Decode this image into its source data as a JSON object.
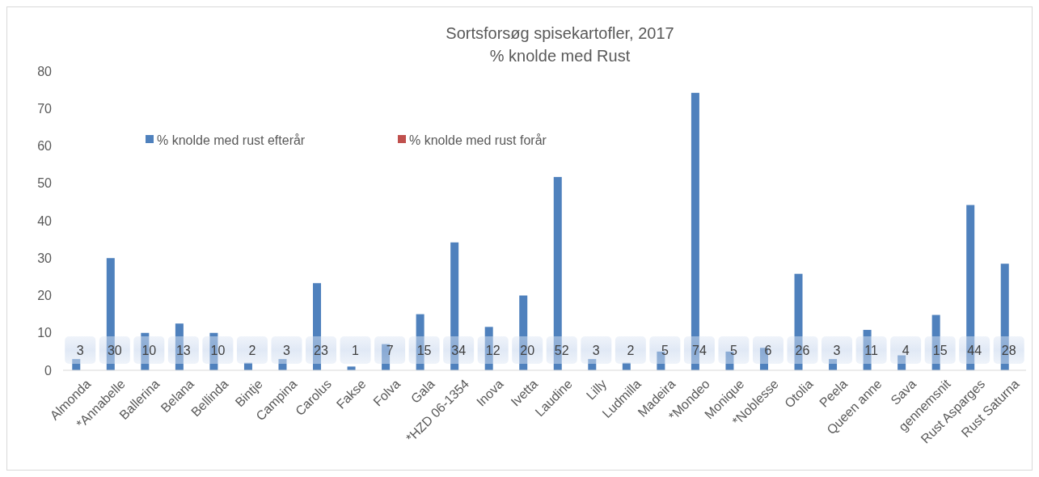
{
  "chart_data": {
    "type": "bar",
    "title": "Sortsforsøg spisekartofler, 2017",
    "subtitle": "% knolde med Rust",
    "categories": [
      "Almonda",
      "*Annabelle",
      "Ballerina",
      "Belana",
      "Bellinda",
      "Bintje",
      "Campina",
      "Carolus",
      "Fakse",
      "Folva",
      "Gala",
      "*HZD 06-1354",
      "Inova",
      "Ivetta",
      "Laudine",
      "Lilly",
      "Ludmilla",
      "Madeira",
      "*Mondeo",
      "Monique",
      "*Noblesse",
      "Otolia",
      "Peela",
      "Queen anne",
      "Sava",
      "gennemsnit",
      "Rust Asparges",
      "Rust Saturna"
    ],
    "series": [
      {
        "name": "% knolde  med rust efterår",
        "color": "#4f81bd",
        "values": [
          3,
          30,
          10,
          12.5,
          10,
          2,
          3,
          23.3,
          1,
          7,
          15,
          34.2,
          11.6,
          20,
          51.7,
          3,
          2,
          5,
          74.2,
          5,
          6,
          25.8,
          3,
          10.8,
          4,
          14.8,
          44.2,
          28.5
        ],
        "value_labels": [
          "3",
          "30",
          "10",
          "13",
          "10",
          "2",
          "3",
          "23",
          "1",
          "7",
          "15",
          "34",
          "12",
          "20",
          "52",
          "3",
          "2",
          "5",
          "74",
          "5",
          "6",
          "26",
          "3",
          "11",
          "4",
          "15",
          "44",
          "28"
        ]
      },
      {
        "name": "% knolde med rust forår",
        "color": "#c0504d",
        "values": [
          null,
          null,
          null,
          null,
          null,
          null,
          null,
          null,
          null,
          null,
          null,
          null,
          null,
          null,
          null,
          null,
          null,
          null,
          null,
          null,
          null,
          null,
          null,
          null,
          null,
          null,
          null,
          null
        ]
      }
    ],
    "ylim": [
      0,
      80
    ],
    "yticks": [
      0,
      10,
      20,
      30,
      40,
      50,
      60,
      70,
      80
    ],
    "grid": false,
    "legend": "top left"
  }
}
